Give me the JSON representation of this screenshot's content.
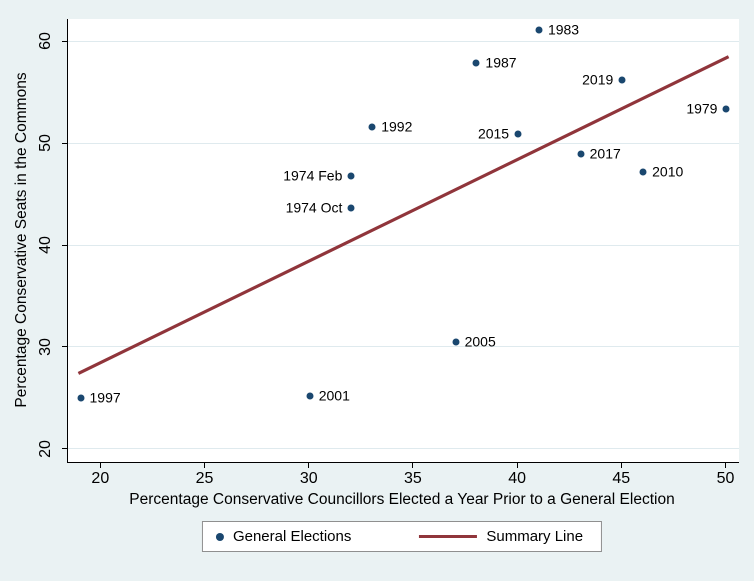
{
  "figure": {
    "background": "#eaf2f3",
    "plot_background": "#ffffff"
  },
  "chart_data": {
    "type": "scatter",
    "title": "",
    "xlabel": "Percentage Conservative Councillors Elected a Year Prior to a General Election",
    "ylabel": "Percentage Conservative Seats in the Commons",
    "xlim": [
      18.4,
      50.6
    ],
    "ylim": [
      18.7,
      62.2
    ],
    "x_ticks": [
      "20",
      "25",
      "30",
      "35",
      "40",
      "45",
      "50"
    ],
    "x_tick_values": [
      20,
      25,
      30,
      35,
      40,
      45,
      50
    ],
    "y_ticks": [
      "20",
      "30",
      "40",
      "50",
      "60"
    ],
    "y_tick_values": [
      20,
      30,
      40,
      50,
      60
    ],
    "grid": "horizontal",
    "points": [
      {
        "label": "1983",
        "x": 41,
        "y": 61.1,
        "label_side": "right"
      },
      {
        "label": "1987",
        "x": 38,
        "y": 57.9,
        "label_side": "right"
      },
      {
        "label": "2019",
        "x": 45,
        "y": 56.2,
        "label_side": "left"
      },
      {
        "label": "1979",
        "x": 50,
        "y": 53.4,
        "label_side": "left"
      },
      {
        "label": "1992",
        "x": 33,
        "y": 51.6,
        "label_side": "right"
      },
      {
        "label": "2015",
        "x": 40,
        "y": 50.9,
        "label_side": "left"
      },
      {
        "label": "2017",
        "x": 43,
        "y": 48.9,
        "label_side": "right"
      },
      {
        "label": "2010",
        "x": 46,
        "y": 47.2,
        "label_side": "right"
      },
      {
        "label": "1974 Feb",
        "x": 32,
        "y": 46.8,
        "label_side": "left"
      },
      {
        "label": "1974 Oct",
        "x": 32,
        "y": 43.6,
        "label_side": "left"
      },
      {
        "label": "2005",
        "x": 37,
        "y": 30.5,
        "label_side": "right"
      },
      {
        "label": "2001",
        "x": 30,
        "y": 25.2,
        "label_side": "right"
      },
      {
        "label": "1997",
        "x": 19,
        "y": 25.0,
        "label_side": "right"
      }
    ],
    "summary_line": {
      "x1": 18.9,
      "y1": 27.4,
      "x2": 50.1,
      "y2": 58.5
    },
    "legend": {
      "position": "bottom-center",
      "entries": [
        {
          "label": "General Elections",
          "marker": "dot-icon"
        },
        {
          "label": "Summary Line",
          "marker": "line-icon"
        }
      ]
    },
    "colors": {
      "point": "#1a476f",
      "line": "#90353b",
      "grid": "#dfeaee",
      "axis": "#000000"
    }
  }
}
